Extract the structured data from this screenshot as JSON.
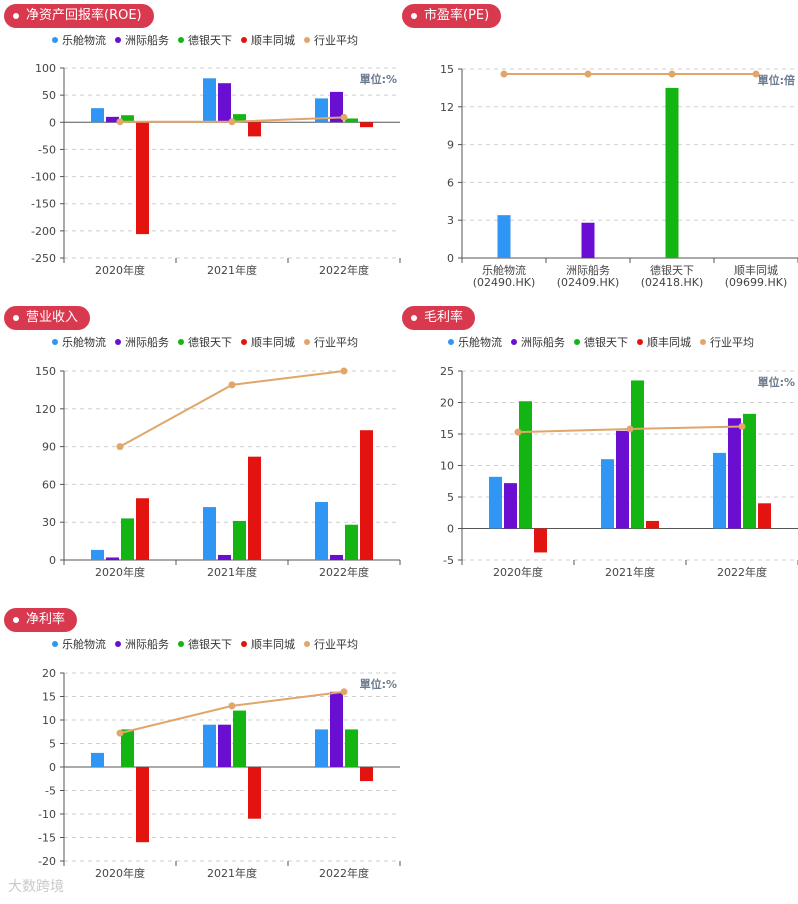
{
  "colors": {
    "series": [
      "#2f96f5",
      "#6a0fd2",
      "#12b512",
      "#e3140f"
    ],
    "avg": "#e0a66a",
    "pill_bg": "#d9394e",
    "axis": "#555555",
    "grid": "#cfcfcf"
  },
  "watermark": "大数跨境",
  "chart_data": [
    {
      "id": "roe",
      "title": "净资产回报率(ROE)",
      "type": "bar",
      "unit": "單位:%",
      "legend": [
        "乐舱物流",
        "洲际船务",
        "德银天下",
        "顺丰同城",
        "行业平均"
      ],
      "categories": [
        "2020年度",
        "2021年度",
        "2022年度"
      ],
      "ylim": [
        -250,
        100
      ],
      "yticks": [
        100,
        50,
        0,
        -50,
        -100,
        -150,
        -200,
        -250
      ],
      "series": [
        {
          "name": "乐舱物流",
          "values": [
            26,
            81,
            44
          ]
        },
        {
          "name": "洲际船务",
          "values": [
            10,
            72,
            56
          ]
        },
        {
          "name": "德银天下",
          "values": [
            13,
            15,
            7
          ]
        },
        {
          "name": "顺丰同城",
          "values": [
            -206,
            -26,
            -9
          ]
        }
      ],
      "line": {
        "name": "行业平均",
        "values": [
          1,
          1,
          9
        ]
      }
    },
    {
      "id": "pe",
      "title": "市盈率(PE)",
      "type": "bar",
      "unit": "單位:倍",
      "categories": [
        "乐舱物流\n(02490.HK)",
        "洲际船务\n(02409.HK)",
        "德银天下\n(02418.HK)",
        "顺丰同城\n(09699.HK)"
      ],
      "ylim": [
        0,
        15
      ],
      "yticks": [
        15,
        12,
        9,
        6,
        3,
        0
      ],
      "values": [
        3.4,
        2.8,
        13.5,
        0
      ],
      "line": {
        "name": "行业平均",
        "values": [
          14.6,
          14.6,
          14.6,
          14.6
        ]
      }
    },
    {
      "id": "revenue",
      "title": "营业收入",
      "type": "bar",
      "unit": "",
      "legend": [
        "乐舱物流",
        "洲际船务",
        "德银天下",
        "顺丰同城",
        "行业平均"
      ],
      "categories": [
        "2020年度",
        "2021年度",
        "2022年度"
      ],
      "ylim": [
        0,
        150
      ],
      "yticks": [
        150,
        120,
        90,
        60,
        30,
        0
      ],
      "series": [
        {
          "name": "乐舱物流",
          "values": [
            8,
            42,
            46
          ]
        },
        {
          "name": "洲际船务",
          "values": [
            2,
            4,
            4
          ]
        },
        {
          "name": "德银天下",
          "values": [
            33,
            31,
            28
          ]
        },
        {
          "name": "顺丰同城",
          "values": [
            49,
            82,
            103
          ]
        }
      ],
      "line": {
        "name": "行业平均",
        "values": [
          90,
          139,
          150
        ]
      }
    },
    {
      "id": "gross",
      "title": "毛利率",
      "type": "bar",
      "unit": "單位:%",
      "legend": [
        "乐舱物流",
        "洲际船务",
        "德银天下",
        "顺丰同城",
        "行业平均"
      ],
      "categories": [
        "2020年度",
        "2021年度",
        "2022年度"
      ],
      "ylim": [
        -5,
        25
      ],
      "yticks": [
        25,
        20,
        15,
        10,
        5,
        0,
        -5
      ],
      "series": [
        {
          "name": "乐舱物流",
          "values": [
            8.2,
            11,
            12
          ]
        },
        {
          "name": "洲际船务",
          "values": [
            7.2,
            15.5,
            17.5
          ]
        },
        {
          "name": "德银天下",
          "values": [
            20.2,
            23.5,
            18.2
          ]
        },
        {
          "name": "顺丰同城",
          "values": [
            -3.8,
            1.2,
            4
          ]
        }
      ],
      "line": {
        "name": "行业平均",
        "values": [
          15.3,
          15.8,
          16.2
        ]
      }
    },
    {
      "id": "net",
      "title": "净利率",
      "type": "bar",
      "unit": "單位:%",
      "legend": [
        "乐舱物流",
        "洲际船务",
        "德银天下",
        "顺丰同城",
        "行业平均"
      ],
      "categories": [
        "2020年度",
        "2021年度",
        "2022年度"
      ],
      "ylim": [
        -20,
        20
      ],
      "yticks": [
        20,
        15,
        10,
        5,
        0,
        -5,
        -10,
        -15,
        -20
      ],
      "series": [
        {
          "name": "乐舱物流",
          "values": [
            3,
            9,
            8
          ]
        },
        {
          "name": "洲际船务",
          "values": [
            0,
            9,
            16
          ]
        },
        {
          "name": "德银天下",
          "values": [
            8,
            12,
            8
          ]
        },
        {
          "name": "顺丰同城",
          "values": [
            -16,
            -11,
            -3
          ]
        }
      ],
      "line": {
        "name": "行业平均",
        "values": [
          7.2,
          13,
          16
        ]
      }
    }
  ]
}
